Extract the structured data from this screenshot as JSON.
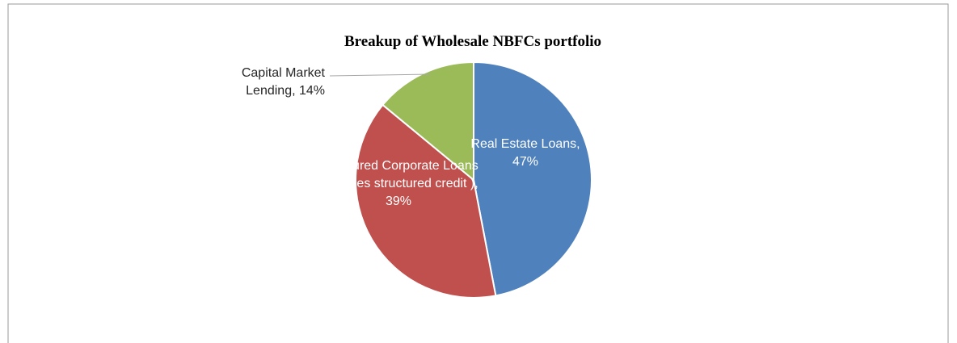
{
  "chart_data": {
    "type": "pie",
    "title": "Breakup of Wholesale NBFCs portfolio",
    "values": [
      47,
      39,
      14
    ],
    "value_labels": [
      "Real Estate Loans, 47%",
      "Structured Corporate Loans (includes structured credit ), 39%",
      "Capital Market Lending, 14%"
    ],
    "colors": [
      "#4f81bd",
      "#c0504d",
      "#9bbb59"
    ]
  }
}
